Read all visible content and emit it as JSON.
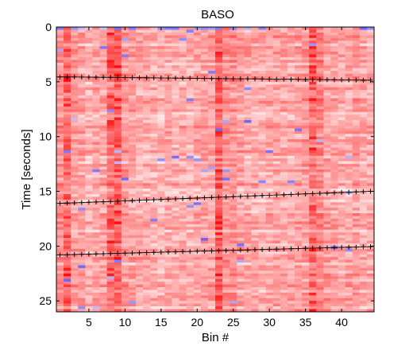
{
  "chart_data": {
    "type": "heatmap",
    "title": "BASO",
    "xlabel": "Bin #",
    "ylabel": "Time [seconds]",
    "xlim": [
      0.5,
      44.5
    ],
    "ylim": [
      0,
      26
    ],
    "y_reversed": true,
    "x_ticks": [
      5,
      10,
      15,
      20,
      25,
      30,
      35,
      40
    ],
    "y_ticks": [
      0,
      5,
      10,
      15,
      20,
      25
    ],
    "n_bins": 44,
    "n_time_rows": 104,
    "colormap": {
      "low": "#2222ff",
      "mid": "#ffffff",
      "high": "#ff0000"
    },
    "bin_intensity_profile": [
      0.42,
      0.55,
      0.38,
      0.36,
      0.3,
      0.34,
      0.36,
      0.52,
      0.58,
      0.4,
      0.36,
      0.32,
      0.33,
      0.3,
      0.28,
      0.33,
      0.3,
      0.32,
      0.3,
      0.34,
      0.36,
      0.35,
      0.58,
      0.45,
      0.42,
      0.36,
      0.34,
      0.33,
      0.32,
      0.34,
      0.36,
      0.33,
      0.32,
      0.36,
      0.4,
      0.52,
      0.48,
      0.38,
      0.36,
      0.32,
      0.34,
      0.38,
      0.33,
      0.32
    ],
    "marker_series": [
      {
        "marker": "+",
        "x_start": 1,
        "x_end": 44,
        "y_start": 4.55,
        "y_end": 4.85
      },
      {
        "marker": "+",
        "x_start": 1,
        "x_end": 44,
        "y_start": 16.1,
        "y_end": 15.0
      },
      {
        "marker": "+",
        "x_start": 1,
        "x_end": 44,
        "y_start": 20.8,
        "y_end": 20.05
      }
    ],
    "grid": false,
    "legend": "none"
  }
}
